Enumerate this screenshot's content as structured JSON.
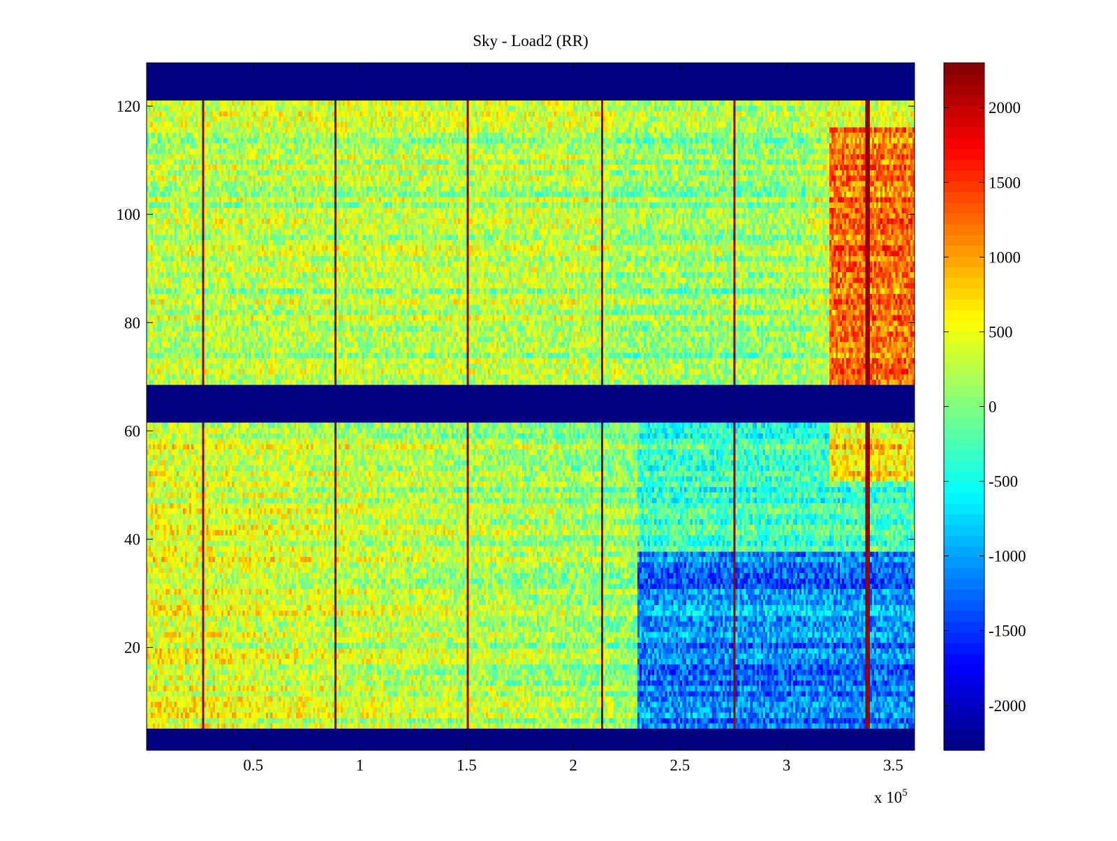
{
  "chart_data": [
    {
      "type": "heatmap",
      "title": "Sky - Load2 (RR)",
      "xlabel": "",
      "ylabel": "",
      "x_multiplier": "x 10",
      "x_exponent": "5",
      "xlim": [
        0,
        3.6
      ],
      "ylim": [
        1,
        128
      ],
      "xticks": [
        {
          "value": 0.5,
          "label": "0.5"
        },
        {
          "value": 1.0,
          "label": "1"
        },
        {
          "value": 1.5,
          "label": "1.5"
        },
        {
          "value": 2.0,
          "label": "2"
        },
        {
          "value": 2.5,
          "label": "2.5"
        },
        {
          "value": 3.0,
          "label": "3"
        },
        {
          "value": 3.5,
          "label": "3.5"
        }
      ],
      "yticks": [
        {
          "value": 20,
          "label": "20"
        },
        {
          "value": 40,
          "label": "40"
        },
        {
          "value": 60,
          "label": "60"
        },
        {
          "value": 80,
          "label": "80"
        },
        {
          "value": 100,
          "label": "100"
        },
        {
          "value": 120,
          "label": "120"
        }
      ],
      "colormap": "jet",
      "clim": [
        -2300,
        2300
      ],
      "colorbar_ticks": [
        {
          "value": 2000,
          "label": "2000"
        },
        {
          "value": 1500,
          "label": "1500"
        },
        {
          "value": 1000,
          "label": "1000"
        },
        {
          "value": 500,
          "label": "500"
        },
        {
          "value": 0,
          "label": "0"
        },
        {
          "value": -500,
          "label": "-500"
        },
        {
          "value": -1000,
          "label": "-1000"
        },
        {
          "value": -1500,
          "label": "-1500"
        },
        {
          "value": -2000,
          "label": "-2000"
        }
      ],
      "masked_channel_ranges": [
        [
          1,
          4
        ],
        [
          62,
          68
        ],
        [
          122,
          128
        ]
      ],
      "spike_columns_x": [
        0.262,
        0.885,
        1.508,
        2.133,
        2.757,
        3.38
      ],
      "regions": [
        {
          "name": "upper-band-left",
          "x_range": [
            0,
            2.1
          ],
          "y_range": [
            68,
            122
          ],
          "approx_value": 250
        },
        {
          "name": "upper-band-right-hotspot",
          "x_range": [
            3.2,
            3.6
          ],
          "y_range": [
            68,
            117
          ],
          "approx_value": 1200
        },
        {
          "name": "lower-band-left",
          "x_range": [
            0,
            1.5
          ],
          "y_range": [
            4,
            62
          ],
          "approx_value": 500
        },
        {
          "name": "lower-band-right-cold",
          "x_range": [
            2.3,
            3.6
          ],
          "y_range": [
            4,
            38
          ],
          "approx_value": -1200
        }
      ]
    }
  ]
}
